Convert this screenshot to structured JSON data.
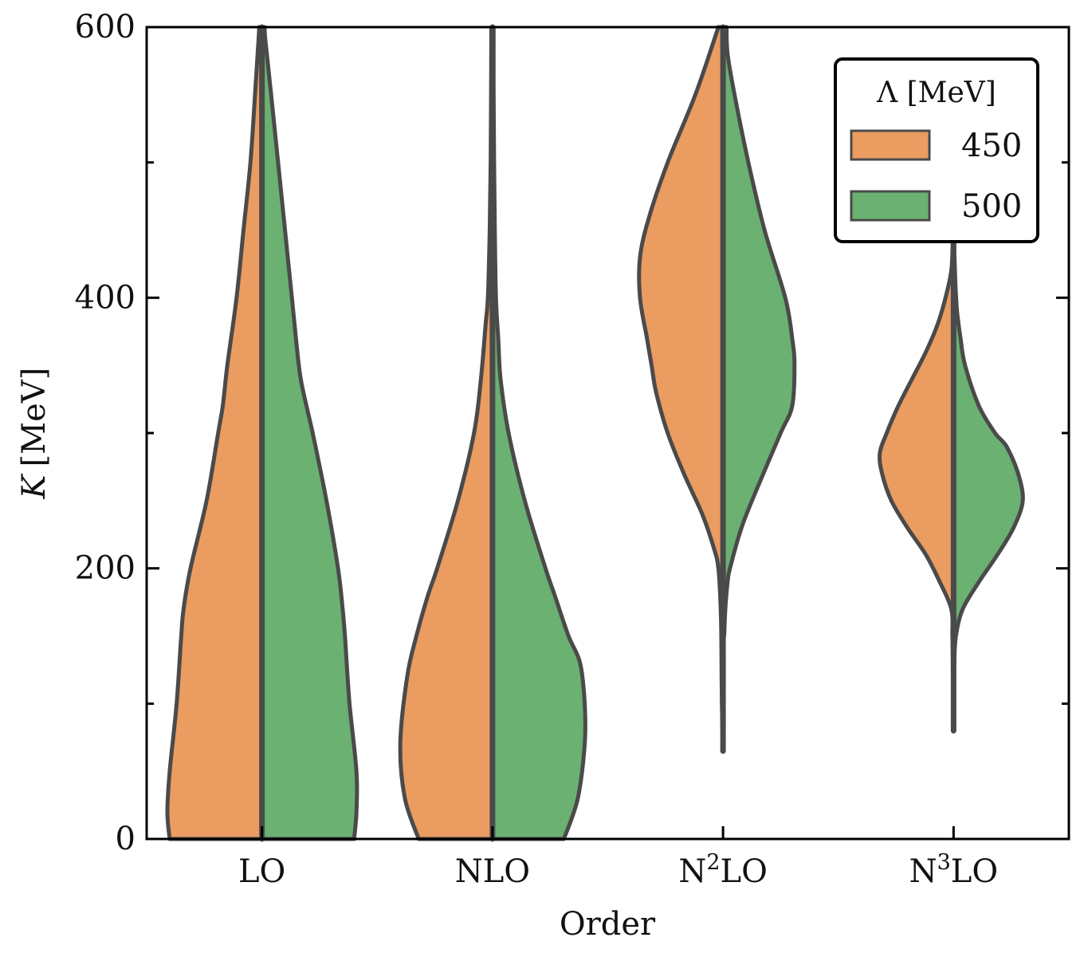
{
  "chart_data": {
    "type": "violin",
    "xlabel": "Order",
    "ylabel_var": "K",
    "ylabel_unit": "[MeV]",
    "ylim": [
      0,
      600
    ],
    "yticks": [
      0,
      200,
      400,
      600
    ],
    "yminor": [
      100,
      300,
      500
    ],
    "categories": [
      {
        "base": "LO",
        "sup": ""
      },
      {
        "base": "N",
        "sup": "",
        "rest": "LO",
        "label": "NLO"
      },
      {
        "base": "N",
        "sup": "2",
        "rest": "LO"
      },
      {
        "base": "N",
        "sup": "3",
        "rest": "LO"
      }
    ],
    "legend": {
      "title": "Λ [MeV]",
      "placement": "upper-right",
      "entries": [
        {
          "label": "450",
          "color": "#eb9c61"
        },
        {
          "label": "500",
          "color": "#6ab172"
        }
      ]
    },
    "outline_color": "#4a4a4a",
    "series": [
      {
        "name": "450",
        "color": "#eb9c61",
        "side": "left",
        "violins": [
          {
            "k": [
              0,
              20,
              50,
              100,
              150,
              170,
              200,
              250,
              300,
              320,
              350,
              400,
              450,
              500,
              550,
              590,
              600
            ],
            "w": [
              0.4,
              0.41,
              0.4,
              0.37,
              0.35,
              0.34,
              0.31,
              0.24,
              0.19,
              0.17,
              0.15,
              0.11,
              0.08,
              0.05,
              0.03,
              0.015,
              0.012
            ]
          },
          {
            "k": [
              0,
              30,
              70,
              120,
              150,
              180,
              200,
              250,
              300,
              340,
              380,
              400,
              450,
              500,
              550,
              600
            ],
            "w": [
              0.32,
              0.38,
              0.4,
              0.37,
              0.33,
              0.28,
              0.24,
              0.15,
              0.08,
              0.05,
              0.03,
              0.02,
              0.012,
              0.008,
              0.006,
              0.005
            ]
          },
          {
            "k": [
              65,
              100,
              140,
              170,
              200,
              215,
              240,
              270,
              300,
              330,
              350,
              370,
              400,
              430,
              460,
              500,
              550,
              600
            ],
            "w": [
              0,
              0.005,
              0.007,
              0.01,
              0.02,
              0.04,
              0.09,
              0.17,
              0.24,
              0.29,
              0.31,
              0.33,
              0.36,
              0.36,
              0.32,
              0.24,
              0.12,
              0.02
            ]
          },
          {
            "k": [
              80,
              120,
              150,
              170,
              190,
              210,
              230,
              250,
              270,
              285,
              300,
              320,
              340,
              360,
              380,
              400,
              420,
              440,
              460
            ],
            "w": [
              0,
              0.003,
              0.005,
              0.01,
              0.06,
              0.12,
              0.2,
              0.27,
              0.31,
              0.32,
              0.29,
              0.24,
              0.18,
              0.12,
              0.07,
              0.035,
              0.01,
              0.004,
              0.002
            ]
          }
        ]
      },
      {
        "name": "500",
        "color": "#6ab172",
        "side": "right",
        "violins": [
          {
            "k": [
              0,
              20,
              50,
              100,
              150,
              170,
              200,
              250,
              300,
              330,
              350,
              400,
              450,
              500,
              550,
              590,
              600
            ],
            "w": [
              0.4,
              0.41,
              0.41,
              0.38,
              0.36,
              0.35,
              0.33,
              0.28,
              0.22,
              0.18,
              0.16,
              0.13,
              0.1,
              0.07,
              0.04,
              0.015,
              0.012
            ]
          },
          {
            "k": [
              0,
              30,
              70,
              100,
              130,
              150,
              180,
              200,
              250,
              300,
              340,
              370,
              400,
              450,
              500,
              550,
              600
            ],
            "w": [
              0.31,
              0.37,
              0.4,
              0.4,
              0.38,
              0.33,
              0.27,
              0.23,
              0.14,
              0.07,
              0.035,
              0.025,
              0.015,
              0.01,
              0.007,
              0.005,
              0.005
            ]
          },
          {
            "k": [
              150,
              170,
              190,
              200,
              230,
              260,
              300,
              320,
              350,
              370,
              400,
              450,
              500,
              550,
              580,
              600
            ],
            "w": [
              0.005,
              0.01,
              0.02,
              0.03,
              0.08,
              0.15,
              0.25,
              0.3,
              0.31,
              0.3,
              0.27,
              0.18,
              0.11,
              0.05,
              0.02,
              0.015
            ]
          },
          {
            "k": [
              130,
              150,
              170,
              190,
              210,
              230,
              250,
              270,
              290,
              300,
              320,
              350,
              370,
              390,
              410,
              430
            ],
            "w": [
              0.003,
              0.01,
              0.04,
              0.11,
              0.19,
              0.26,
              0.3,
              0.28,
              0.23,
              0.18,
              0.11,
              0.05,
              0.03,
              0.015,
              0.008,
              0.004
            ]
          }
        ]
      }
    ]
  }
}
